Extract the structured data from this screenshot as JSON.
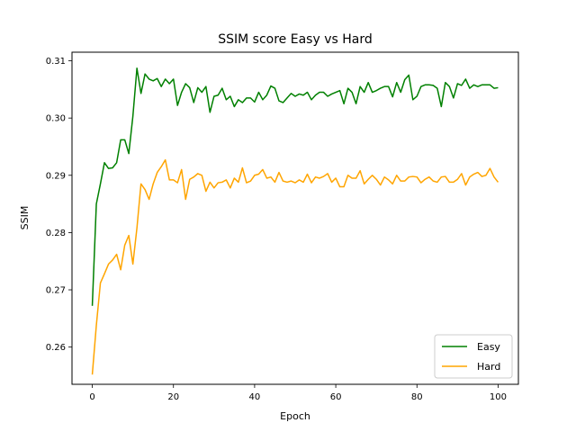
{
  "chart_data": {
    "type": "line",
    "title": "SSIM score Easy vs Hard",
    "xlabel": "Epoch",
    "ylabel": "SSIM",
    "xlim": [
      -5,
      105
    ],
    "ylim": [
      0.2535,
      0.3115
    ],
    "xticks": [
      0,
      20,
      40,
      60,
      80,
      100
    ],
    "yticks": [
      0.26,
      0.27,
      0.28,
      0.29,
      0.3,
      0.31
    ],
    "ytick_labels": [
      "0.26",
      "0.27",
      "0.28",
      "0.29",
      "0.30",
      "0.31"
    ],
    "grid": false,
    "legend_position": "lower-right",
    "x": [
      0,
      1,
      2,
      3,
      4,
      5,
      6,
      7,
      8,
      9,
      10,
      11,
      12,
      13,
      14,
      15,
      16,
      17,
      18,
      19,
      20,
      21,
      22,
      23,
      24,
      25,
      26,
      27,
      28,
      29,
      30,
      31,
      32,
      33,
      34,
      35,
      36,
      37,
      38,
      39,
      40,
      41,
      42,
      43,
      44,
      45,
      46,
      47,
      48,
      49,
      50,
      51,
      52,
      53,
      54,
      55,
      56,
      57,
      58,
      59,
      60,
      61,
      62,
      63,
      64,
      65,
      66,
      67,
      68,
      69,
      70,
      71,
      72,
      73,
      74,
      75,
      76,
      77,
      78,
      79,
      80,
      81,
      82,
      83,
      84,
      85,
      86,
      87,
      88,
      89,
      90,
      91,
      92,
      93,
      94,
      95,
      96,
      97,
      98,
      99,
      100
    ],
    "series": [
      {
        "name": "Easy",
        "color": "#008000",
        "values": [
          0.2672,
          0.285,
          0.2885,
          0.2922,
          0.2912,
          0.2913,
          0.2922,
          0.2962,
          0.2962,
          0.2938,
          0.3003,
          0.3087,
          0.3043,
          0.3077,
          0.3068,
          0.3065,
          0.3069,
          0.3055,
          0.3068,
          0.306,
          0.3068,
          0.3022,
          0.3045,
          0.306,
          0.3053,
          0.3027,
          0.3053,
          0.3045,
          0.3055,
          0.301,
          0.3038,
          0.304,
          0.3052,
          0.3032,
          0.3038,
          0.302,
          0.3032,
          0.3027,
          0.3035,
          0.3035,
          0.3028,
          0.3045,
          0.3032,
          0.304,
          0.3056,
          0.3052,
          0.303,
          0.3027,
          0.3035,
          0.3043,
          0.3038,
          0.3042,
          0.304,
          0.3045,
          0.3032,
          0.304,
          0.3045,
          0.3045,
          0.3038,
          0.3042,
          0.3045,
          0.3048,
          0.3025,
          0.3052,
          0.3045,
          0.3025,
          0.3055,
          0.3045,
          0.3062,
          0.3045,
          0.3048,
          0.3052,
          0.3055,
          0.3055,
          0.3037,
          0.3062,
          0.3045,
          0.3067,
          0.3075,
          0.3032,
          0.3038,
          0.3055,
          0.3058,
          0.3058,
          0.3057,
          0.3052,
          0.302,
          0.3062,
          0.3055,
          0.3035,
          0.306,
          0.3057,
          0.3068,
          0.3052,
          0.3058,
          0.3055,
          0.3058,
          0.3058,
          0.3058,
          0.3052,
          0.3053
        ]
      },
      {
        "name": "Hard",
        "color": "#ffa500",
        "values": [
          0.2552,
          0.2638,
          0.2712,
          0.2728,
          0.2745,
          0.2752,
          0.2762,
          0.2735,
          0.2778,
          0.2795,
          0.2745,
          0.2808,
          0.2885,
          0.2875,
          0.2858,
          0.2885,
          0.2905,
          0.2915,
          0.2927,
          0.2892,
          0.2892,
          0.2887,
          0.291,
          0.2858,
          0.2893,
          0.2897,
          0.2903,
          0.29,
          0.2872,
          0.2888,
          0.2878,
          0.2887,
          0.2888,
          0.2892,
          0.2878,
          0.2895,
          0.2888,
          0.2913,
          0.2887,
          0.289,
          0.29,
          0.2902,
          0.291,
          0.2895,
          0.2897,
          0.2888,
          0.2905,
          0.289,
          0.2888,
          0.289,
          0.2887,
          0.2892,
          0.2888,
          0.2902,
          0.2887,
          0.2897,
          0.2895,
          0.2898,
          0.2903,
          0.2888,
          0.2895,
          0.288,
          0.288,
          0.29,
          0.2895,
          0.2895,
          0.2908,
          0.2885,
          0.2893,
          0.29,
          0.2893,
          0.2883,
          0.2897,
          0.2892,
          0.2885,
          0.29,
          0.289,
          0.289,
          0.2897,
          0.2898,
          0.2897,
          0.2887,
          0.2893,
          0.2897,
          0.289,
          0.2888,
          0.2897,
          0.2898,
          0.2888,
          0.2888,
          0.2893,
          0.2903,
          0.2883,
          0.2897,
          0.2902,
          0.2905,
          0.2898,
          0.29,
          0.2912,
          0.2897,
          0.2888
        ]
      }
    ]
  }
}
